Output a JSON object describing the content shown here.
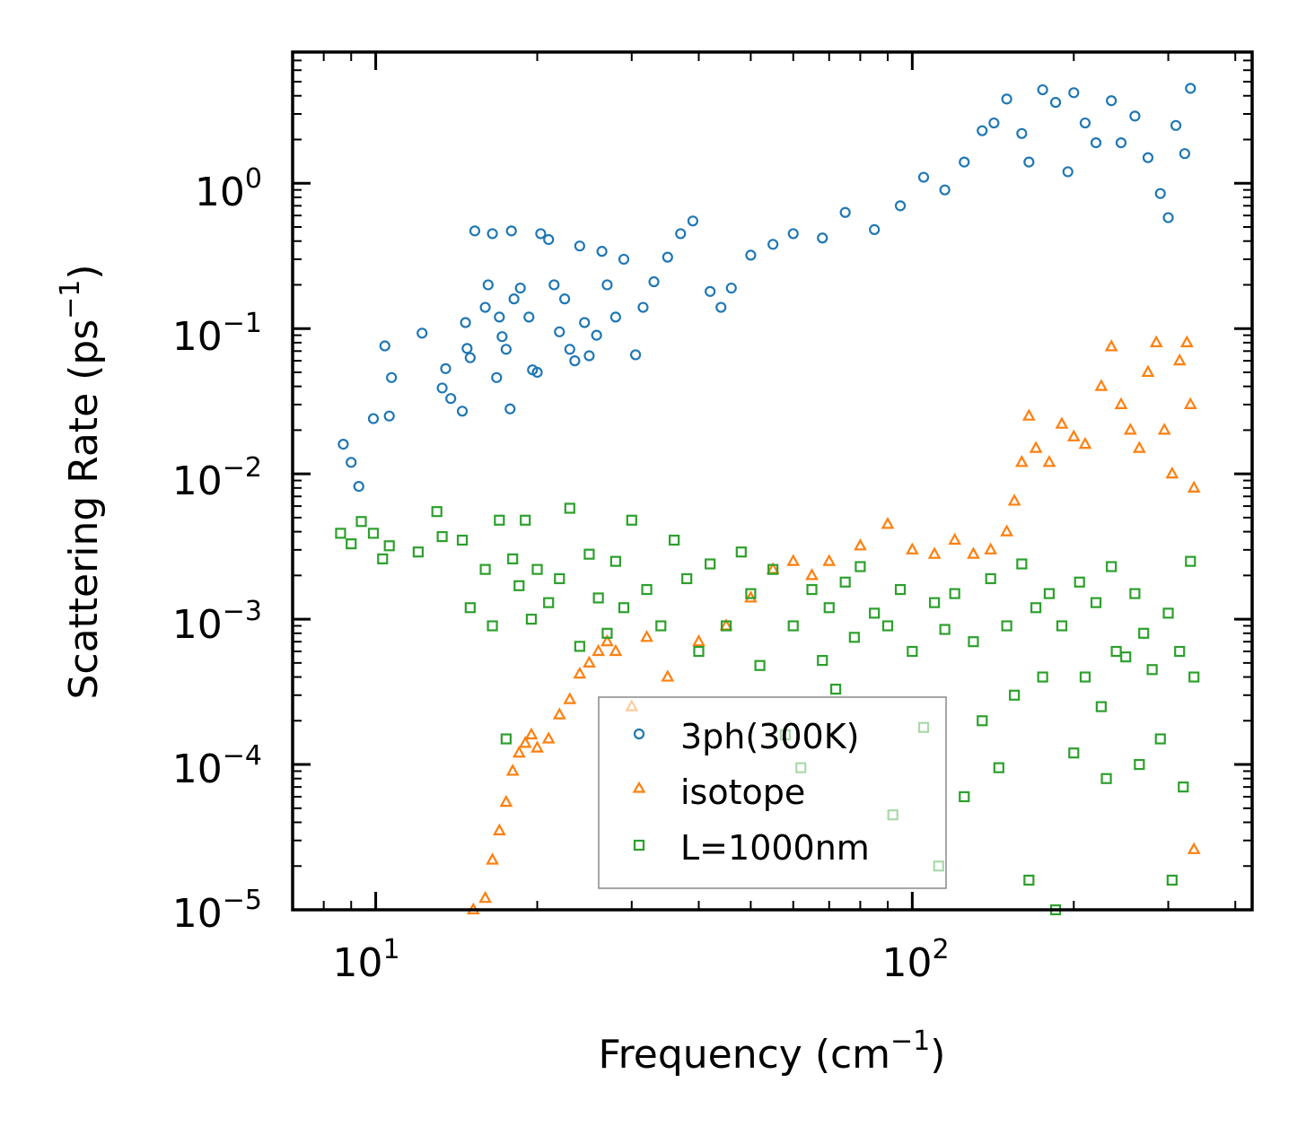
{
  "chart_data": {
    "type": "scatter",
    "xscale": "log",
    "yscale": "log",
    "xlim": [
      7.0,
      430
    ],
    "ylim": [
      1e-05,
      8
    ],
    "x_ticks": [
      {
        "value": 10,
        "base": "10",
        "exp": "1"
      },
      {
        "value": 100,
        "base": "10",
        "exp": "2"
      }
    ],
    "y_ticks": [
      {
        "value": 1,
        "base": "10",
        "exp": "0"
      },
      {
        "value": 0.1,
        "base": "10",
        "exp": "−1"
      },
      {
        "value": 0.01,
        "base": "10",
        "exp": "−2"
      },
      {
        "value": 0.001,
        "base": "10",
        "exp": "−3"
      },
      {
        "value": 0.0001,
        "base": "10",
        "exp": "−4"
      },
      {
        "value": 1e-05,
        "base": "10",
        "exp": "−5"
      }
    ],
    "xlabel": {
      "text": "Frequency (cm",
      "sup": "−1",
      "tail": ")"
    },
    "ylabel": {
      "text": "Scattering Rate (ps",
      "sup": "−1",
      "tail": ")"
    },
    "legend_position": "lower-center",
    "series": [
      {
        "name": "3ph(300K)",
        "marker": "circle",
        "color": "#1f77b4",
        "points": [
          [
            8.7,
            0.016
          ],
          [
            9.0,
            0.012
          ],
          [
            9.3,
            0.0082
          ],
          [
            9.9,
            0.024
          ],
          [
            10.4,
            0.076
          ],
          [
            10.6,
            0.025
          ],
          [
            10.7,
            0.046
          ],
          [
            12.2,
            0.093
          ],
          [
            13.3,
            0.039
          ],
          [
            13.5,
            0.053
          ],
          [
            13.8,
            0.033
          ],
          [
            14.5,
            0.027
          ],
          [
            14.8,
            0.073
          ],
          [
            14.7,
            0.11
          ],
          [
            15.0,
            0.063
          ],
          [
            15.3,
            0.47
          ],
          [
            16.0,
            0.14
          ],
          [
            16.2,
            0.2
          ],
          [
            16.5,
            0.45
          ],
          [
            16.8,
            0.046
          ],
          [
            17.0,
            0.12
          ],
          [
            17.2,
            0.088
          ],
          [
            17.5,
            0.072
          ],
          [
            17.8,
            0.028
          ],
          [
            17.9,
            0.47
          ],
          [
            18.1,
            0.16
          ],
          [
            18.6,
            0.19
          ],
          [
            19.3,
            0.12
          ],
          [
            19.6,
            0.052
          ],
          [
            20.0,
            0.05
          ],
          [
            20.3,
            0.45
          ],
          [
            21.0,
            0.41
          ],
          [
            21.5,
            0.2
          ],
          [
            22.0,
            0.095
          ],
          [
            22.5,
            0.16
          ],
          [
            23.0,
            0.072
          ],
          [
            23.5,
            0.06
          ],
          [
            24.0,
            0.37
          ],
          [
            24.5,
            0.11
          ],
          [
            25.0,
            0.065
          ],
          [
            25.8,
            0.09
          ],
          [
            26.4,
            0.34
          ],
          [
            27.0,
            0.2
          ],
          [
            28.0,
            0.12
          ],
          [
            29.0,
            0.3
          ],
          [
            30.5,
            0.066
          ],
          [
            31.5,
            0.14
          ],
          [
            33.0,
            0.21
          ],
          [
            35.0,
            0.31
          ],
          [
            37.0,
            0.45
          ],
          [
            39.0,
            0.55
          ],
          [
            42.0,
            0.18
          ],
          [
            44.0,
            0.14
          ],
          [
            46.0,
            0.19
          ],
          [
            50.0,
            0.32
          ],
          [
            55.0,
            0.38
          ],
          [
            60.0,
            0.45
          ],
          [
            68.0,
            0.42
          ],
          [
            75.0,
            0.63
          ],
          [
            85.0,
            0.48
          ],
          [
            95.0,
            0.7
          ],
          [
            105.0,
            1.1
          ],
          [
            115.0,
            0.9
          ],
          [
            125.0,
            1.4
          ],
          [
            135.0,
            2.3
          ],
          [
            142.0,
            2.6
          ],
          [
            150.0,
            3.8
          ],
          [
            160.0,
            2.2
          ],
          [
            165.0,
            1.4
          ],
          [
            175.0,
            4.4
          ],
          [
            185.0,
            3.6
          ],
          [
            195.0,
            1.2
          ],
          [
            200.0,
            4.2
          ],
          [
            210.0,
            2.6
          ],
          [
            220.0,
            1.9
          ],
          [
            235.0,
            3.7
          ],
          [
            245.0,
            1.9
          ],
          [
            260.0,
            2.9
          ],
          [
            275.0,
            1.5
          ],
          [
            290.0,
            0.85
          ],
          [
            300.0,
            0.58
          ],
          [
            310.0,
            2.5
          ],
          [
            322.0,
            1.6
          ],
          [
            330.0,
            4.5
          ]
        ]
      },
      {
        "name": "isotope",
        "marker": "triangle",
        "color": "#ff7f0e",
        "points": [
          [
            15.2,
            1e-05
          ],
          [
            16.0,
            1.2e-05
          ],
          [
            16.5,
            2.2e-05
          ],
          [
            17.0,
            3.5e-05
          ],
          [
            17.5,
            5.5e-05
          ],
          [
            18.0,
            9e-05
          ],
          [
            18.5,
            0.00012
          ],
          [
            19.0,
            0.00014
          ],
          [
            19.5,
            0.00016
          ],
          [
            20.0,
            0.00013
          ],
          [
            21.0,
            0.00015
          ],
          [
            22.0,
            0.00022
          ],
          [
            23.0,
            0.00028
          ],
          [
            24.0,
            0.00042
          ],
          [
            25.0,
            0.0005
          ],
          [
            26.0,
            0.0006
          ],
          [
            27.0,
            0.0007
          ],
          [
            28.0,
            0.0006
          ],
          [
            30.0,
            0.00025
          ],
          [
            32.0,
            0.00075
          ],
          [
            35.0,
            0.0004
          ],
          [
            40.0,
            0.0007
          ],
          [
            45.0,
            0.0009
          ],
          [
            50.0,
            0.0014
          ],
          [
            55.0,
            0.0022
          ],
          [
            60.0,
            0.0025
          ],
          [
            65.0,
            0.002
          ],
          [
            70.0,
            0.0025
          ],
          [
            80.0,
            0.0032
          ],
          [
            90.0,
            0.0045
          ],
          [
            100.0,
            0.003
          ],
          [
            110.0,
            0.0028
          ],
          [
            120.0,
            0.0035
          ],
          [
            130.0,
            0.0028
          ],
          [
            140.0,
            0.003
          ],
          [
            150.0,
            0.004
          ],
          [
            155.0,
            0.0065
          ],
          [
            160.0,
            0.012
          ],
          [
            165.0,
            0.025
          ],
          [
            170.0,
            0.015
          ],
          [
            180.0,
            0.012
          ],
          [
            190.0,
            0.022
          ],
          [
            200.0,
            0.018
          ],
          [
            210.0,
            0.016
          ],
          [
            225.0,
            0.04
          ],
          [
            235.0,
            0.075
          ],
          [
            245.0,
            0.03
          ],
          [
            255.0,
            0.02
          ],
          [
            265.0,
            0.015
          ],
          [
            275.0,
            0.05
          ],
          [
            285.0,
            0.08
          ],
          [
            295.0,
            0.02
          ],
          [
            305.0,
            0.01
          ],
          [
            315.0,
            0.06
          ],
          [
            325.0,
            0.08
          ],
          [
            330.0,
            0.03
          ],
          [
            335.0,
            0.008
          ],
          [
            335.0,
            2.6e-05
          ]
        ]
      },
      {
        "name": "L=1000nm",
        "marker": "square",
        "color": "#2ca02c",
        "points": [
          [
            8.6,
            0.0039
          ],
          [
            9.0,
            0.0033
          ],
          [
            9.4,
            0.0047
          ],
          [
            9.9,
            0.0039
          ],
          [
            10.3,
            0.0026
          ],
          [
            10.6,
            0.0032
          ],
          [
            12.0,
            0.0029
          ],
          [
            13.0,
            0.0055
          ],
          [
            13.3,
            0.0037
          ],
          [
            14.5,
            0.0035
          ],
          [
            15.0,
            0.0012
          ],
          [
            16.0,
            0.0022
          ],
          [
            16.5,
            0.0009
          ],
          [
            17.0,
            0.0048
          ],
          [
            17.5,
            0.00015
          ],
          [
            18.0,
            0.0026
          ],
          [
            18.5,
            0.0017
          ],
          [
            19.0,
            0.0048
          ],
          [
            19.5,
            0.001
          ],
          [
            20.0,
            0.0022
          ],
          [
            21.0,
            0.0013
          ],
          [
            22.0,
            0.0019
          ],
          [
            23.0,
            0.0058
          ],
          [
            24.0,
            0.00065
          ],
          [
            25.0,
            0.0028
          ],
          [
            26.0,
            0.0014
          ],
          [
            27.0,
            0.0008
          ],
          [
            28.0,
            0.0025
          ],
          [
            29.0,
            0.0012
          ],
          [
            30.0,
            0.0048
          ],
          [
            32.0,
            0.0016
          ],
          [
            34.0,
            0.0009
          ],
          [
            36.0,
            0.0035
          ],
          [
            38.0,
            0.0019
          ],
          [
            40.0,
            0.0006
          ],
          [
            42.0,
            0.0024
          ],
          [
            45.0,
            0.0009
          ],
          [
            48.0,
            0.0029
          ],
          [
            50.0,
            0.0015
          ],
          [
            52.0,
            0.00048
          ],
          [
            55.0,
            0.0022
          ],
          [
            58.0,
            0.00016
          ],
          [
            60.0,
            0.0009
          ],
          [
            62.0,
            9.5e-05
          ],
          [
            65.0,
            0.0016
          ],
          [
            68.0,
            0.00052
          ],
          [
            70.0,
            0.0012
          ],
          [
            72.0,
            0.00033
          ],
          [
            75.0,
            0.0018
          ],
          [
            78.0,
            0.00075
          ],
          [
            80.0,
            0.0023
          ],
          [
            85.0,
            0.0011
          ],
          [
            90.0,
            0.0009
          ],
          [
            92.0,
            4.5e-05
          ],
          [
            95.0,
            0.0016
          ],
          [
            100.0,
            0.0006
          ],
          [
            105.0,
            0.00018
          ],
          [
            110.0,
            0.0013
          ],
          [
            112.0,
            2e-05
          ],
          [
            115.0,
            0.00085
          ],
          [
            120.0,
            0.0015
          ],
          [
            125.0,
            6e-05
          ],
          [
            130.0,
            0.0007
          ],
          [
            135.0,
            0.0002
          ],
          [
            140.0,
            0.0019
          ],
          [
            145.0,
            9.5e-05
          ],
          [
            150.0,
            0.0009
          ],
          [
            155.0,
            0.0003
          ],
          [
            160.0,
            0.0024
          ],
          [
            165.0,
            1.6e-05
          ],
          [
            170.0,
            0.0012
          ],
          [
            175.0,
            0.0004
          ],
          [
            180.0,
            0.0015
          ],
          [
            185.0,
            1e-05
          ],
          [
            190.0,
            0.0009
          ],
          [
            200.0,
            0.00012
          ],
          [
            205.0,
            0.0018
          ],
          [
            210.0,
            0.0004
          ],
          [
            220.0,
            0.0013
          ],
          [
            225.0,
            0.00025
          ],
          [
            230.0,
            8e-05
          ],
          [
            235.0,
            0.0023
          ],
          [
            240.0,
            0.0006
          ],
          [
            250.0,
            0.00055
          ],
          [
            260.0,
            0.0015
          ],
          [
            265.0,
            0.0001
          ],
          [
            270.0,
            0.0008
          ],
          [
            280.0,
            0.00045
          ],
          [
            290.0,
            0.00015
          ],
          [
            300.0,
            0.0011
          ],
          [
            305.0,
            1.6e-05
          ],
          [
            315.0,
            0.0006
          ],
          [
            320.0,
            7e-05
          ],
          [
            330.0,
            0.0025
          ],
          [
            335.0,
            0.0004
          ]
        ]
      }
    ]
  }
}
